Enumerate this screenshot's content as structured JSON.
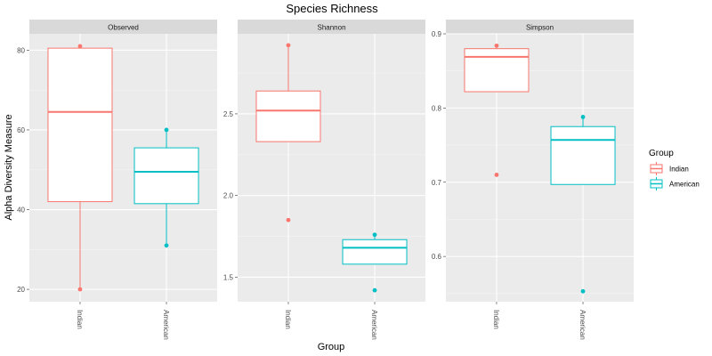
{
  "chart_data": {
    "type": "boxplot",
    "title": "Species Richness",
    "xlabel": "Group",
    "ylabel": "Alpha Diversity Measure",
    "categories": [
      "Indian",
      "American"
    ],
    "colors": {
      "Indian": "#F8766D",
      "American": "#00BFC4"
    },
    "legend": {
      "title": "Group",
      "position": "right",
      "entries": [
        "Indian",
        "American"
      ]
    },
    "grid": true,
    "panels": [
      {
        "name": "Observed",
        "ylim": [
          16.9,
          84.1
        ],
        "yticks": [
          20,
          40,
          60,
          80
        ],
        "series": [
          {
            "group": "Indian",
            "q1": 42,
            "median": 64.5,
            "q3": 80.5,
            "whisker_low": 20,
            "whisker_high": 81,
            "points": [
              81,
              20
            ]
          },
          {
            "group": "American",
            "q1": 41.5,
            "median": 49.5,
            "q3": 55.5,
            "whisker_low": 31,
            "whisker_high": 60,
            "points": [
              60,
              31
            ]
          }
        ]
      },
      {
        "name": "Shannon",
        "ylim": [
          1.35,
          2.99
        ],
        "yticks": [
          1.5,
          2.0,
          2.5
        ],
        "ytick_labels": [
          "1.5",
          "2.0",
          "2.5"
        ],
        "series": [
          {
            "group": "Indian",
            "q1": 2.33,
            "median": 2.52,
            "q3": 2.64,
            "whisker_low": 2.33,
            "whisker_high": 2.92,
            "points": [
              2.92,
              1.85
            ]
          },
          {
            "group": "American",
            "q1": 1.58,
            "median": 1.68,
            "q3": 1.73,
            "whisker_low": 1.58,
            "whisker_high": 1.76,
            "points": [
              1.76,
              1.42
            ]
          }
        ]
      },
      {
        "name": "Simpson",
        "ylim": [
          0.539,
          0.9
        ],
        "yticks": [
          0.6,
          0.7,
          0.8,
          0.9
        ],
        "ytick_labels": [
          "0.6",
          "0.7",
          "0.8",
          "0.9"
        ],
        "series": [
          {
            "group": "Indian",
            "q1": 0.822,
            "median": 0.869,
            "q3": 0.88,
            "whisker_low": 0.822,
            "whisker_high": 0.884,
            "points": [
              0.884,
              0.71
            ]
          },
          {
            "group": "American",
            "q1": 0.697,
            "median": 0.757,
            "q3": 0.775,
            "whisker_low": 0.697,
            "whisker_high": 0.788,
            "points": [
              0.788,
              0.553
            ]
          }
        ]
      }
    ]
  }
}
